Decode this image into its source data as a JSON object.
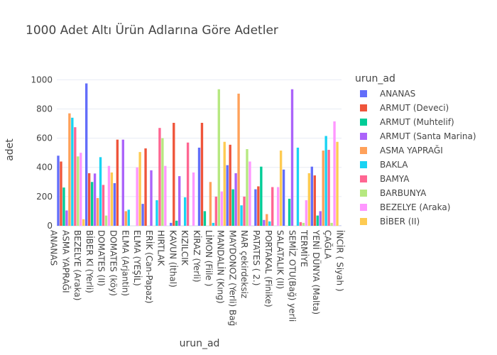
{
  "chart_data": {
    "type": "bar",
    "title": "1000 Adet Altı Ürün Adlarına Göre Adetler",
    "xlabel": "urun_ad",
    "ylabel": "adet",
    "ylim": [
      0,
      1060
    ],
    "yticks": [
      0,
      200,
      400,
      600,
      800,
      1000
    ],
    "grid": true,
    "legend_title": "urun_ad",
    "legend_position": "right",
    "tick_labels": [
      "ANANAS",
      "ASMA YAPRAĞI",
      "BEZELYE (Araka)",
      "BİBER Kl (Yerli)",
      "DOMATES (II)",
      "DOMATES (köy)",
      "ELMA (Arjantin)",
      "ELMA (YEŞİL)",
      "ERİK (Can-Papaz)",
      "HIRTLAK",
      "KAVUN (İthal)",
      "KIZILCIK",
      "KİRAZ (Yerli)",
      "LİMON (Fiile )",
      "MANDALİN (Kıng)",
      "MAYDONOZ (Yerli) Bağ",
      "NAR çekirdeksiz",
      "PATATES ( 2.)",
      "PORTAKAL (Finike)",
      "SALATALIK (II)",
      "SEMİZ OTU(Bağ) yerli",
      "TERMİYE",
      "YENİ DÜNYA (Malta)",
      "ÇAĞLA",
      "İNCİR ( Siyah )"
    ],
    "values": [
      480,
      440,
      262,
      105,
      770,
      740,
      675,
      475,
      500,
      45,
      975,
      360,
      300,
      358,
      190,
      470,
      280,
      70,
      410,
      365,
      292,
      590,
      0,
      590,
      100,
      110,
      0,
      0,
      400,
      505,
      150,
      530,
      0,
      380,
      0,
      175,
      670,
      600,
      410,
      0,
      20,
      705,
      35,
      340,
      0,
      195,
      570,
      0,
      365,
      0,
      535,
      705,
      100,
      0,
      300,
      20,
      200,
      935,
      235,
      575,
      415,
      555,
      250,
      360,
      905,
      140,
      200,
      525,
      440,
      0,
      250,
      270,
      405,
      40,
      80,
      30,
      265,
      0,
      265,
      515,
      385,
      0,
      185,
      935,
      0,
      535,
      25,
      20,
      175,
      360,
      405,
      345,
      70,
      100,
      515,
      615,
      520,
      20,
      715,
      575,
      1
    ],
    "series": [
      {
        "name": "ANANAS",
        "color": "#636efa"
      },
      {
        "name": "ARMUT (Deveci)",
        "color": "#EF553B"
      },
      {
        "name": "ARMUT (Muhtelif)",
        "color": "#00cc96"
      },
      {
        "name": "ARMUT (Santa Marina)",
        "color": "#ab63fa"
      },
      {
        "name": "ASMA YAPRAĞI",
        "color": "#FFA15A"
      },
      {
        "name": "BAKLA",
        "color": "#19d3f3"
      },
      {
        "name": "BAMYA",
        "color": "#FF6692"
      },
      {
        "name": "BARBUNYA",
        "color": "#B6E880"
      },
      {
        "name": "BEZELYE (Araka)",
        "color": "#FF97FF"
      },
      {
        "name": "BİBER (II)",
        "color": "#FECB52"
      }
    ],
    "palette": [
      "#636efa",
      "#EF553B",
      "#00cc96",
      "#ab63fa",
      "#FFA15A",
      "#19d3f3",
      "#FF6692",
      "#B6E880",
      "#FF97FF",
      "#FECB52"
    ],
    "gridline_color": "#e8ecf4",
    "plot_bg": "#ffffff"
  }
}
